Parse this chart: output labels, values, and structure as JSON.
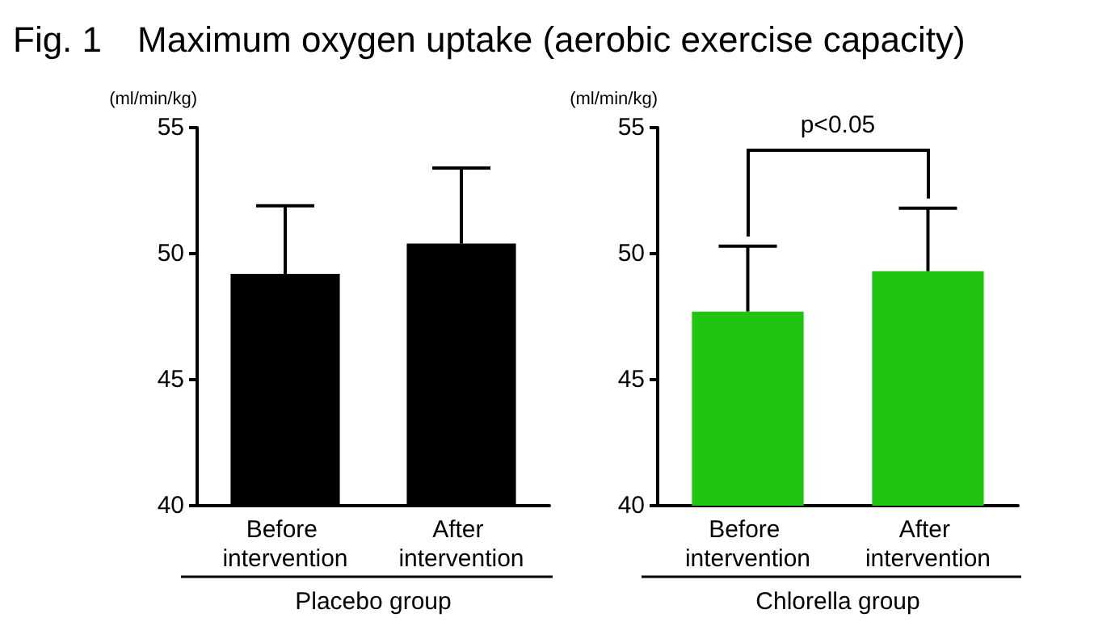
{
  "chart_data": [
    {
      "type": "bar",
      "title": "Fig. 1　Maximum oxygen uptake (aerobic exercise capacity)",
      "ylabel": "(ml/min/kg)",
      "xlabel": "Placebo group",
      "categories": [
        "Before intervention",
        "After intervention"
      ],
      "values": [
        49.2,
        50.4
      ],
      "errors": [
        [
          49.2,
          51.9
        ],
        [
          50.4,
          53.4
        ]
      ],
      "color": "#000000",
      "ylim": [
        40,
        55
      ],
      "yticks": [
        40,
        45,
        50,
        55
      ]
    },
    {
      "type": "bar",
      "ylabel": "(ml/min/kg)",
      "xlabel": "Chlorella group",
      "categories": [
        "Before intervention",
        "After intervention"
      ],
      "values": [
        47.7,
        49.3
      ],
      "errors": [
        [
          47.7,
          50.3
        ],
        [
          49.3,
          51.8
        ]
      ],
      "color": "#22c412",
      "ylim": [
        40,
        55
      ],
      "yticks": [
        40,
        45,
        50,
        55
      ],
      "annotations": [
        "p<0.05"
      ]
    }
  ]
}
